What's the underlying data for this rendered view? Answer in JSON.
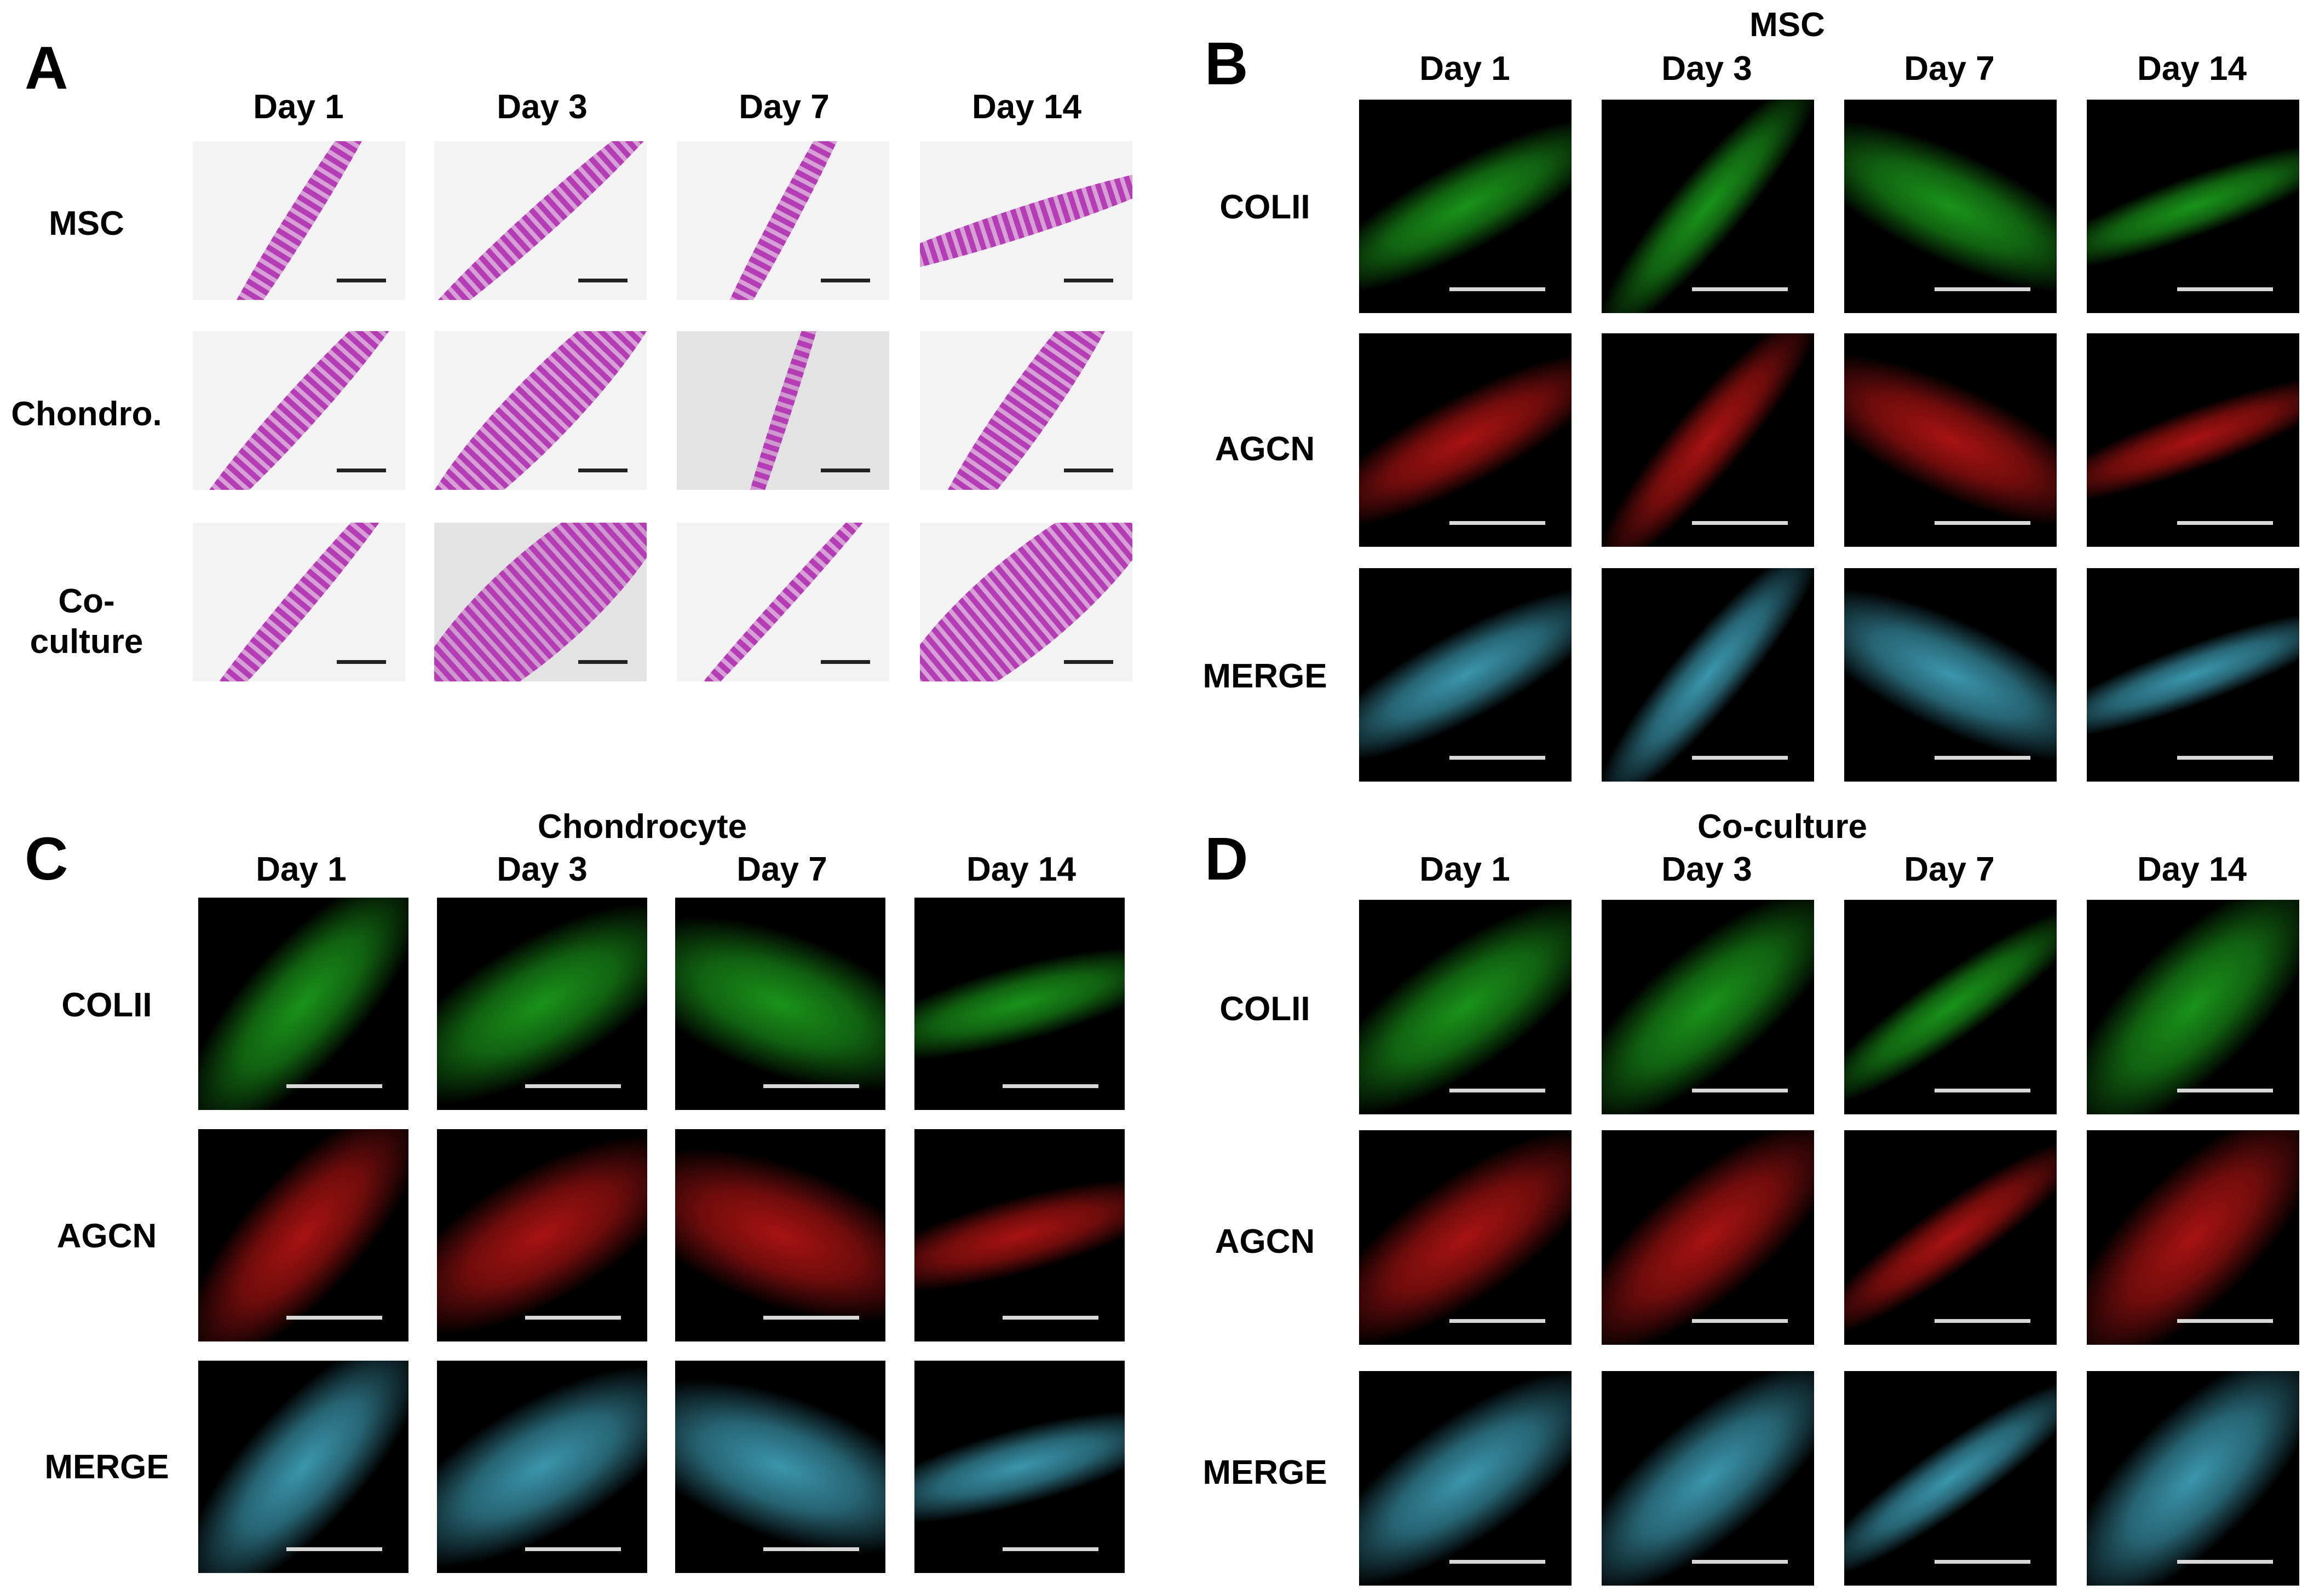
{
  "panels": {
    "A": {
      "letter": "A",
      "title": "",
      "columns": [
        "Day 1",
        "Day 3",
        "Day 7",
        "Day 14"
      ],
      "rows": [
        "MSC",
        "Chondro.",
        "Co-\nculture"
      ]
    },
    "B": {
      "letter": "B",
      "title": "MSC",
      "columns": [
        "Day 1",
        "Day 3",
        "Day 7",
        "Day 14"
      ],
      "rows": [
        "COLII",
        "AGCN",
        "MERGE"
      ]
    },
    "C": {
      "letter": "C",
      "title": "Chondrocyte",
      "columns": [
        "Day 1",
        "Day 3",
        "Day 7",
        "Day 14"
      ],
      "rows": [
        "COLII",
        "AGCN",
        "MERGE"
      ]
    },
    "D": {
      "letter": "D",
      "title": "Co-culture",
      "columns": [
        "Day 1",
        "Day 3",
        "Day 7",
        "Day 14"
      ],
      "rows": [
        "COLII",
        "AGCN",
        "MERGE"
      ]
    }
  },
  "colors": {
    "he_stain": "#b43cb4",
    "colii": "#22c422",
    "agcn": "#e01818",
    "merge": "#4ec8e6",
    "fluor_background": "#000000",
    "he_background": "#f3f3f3"
  }
}
